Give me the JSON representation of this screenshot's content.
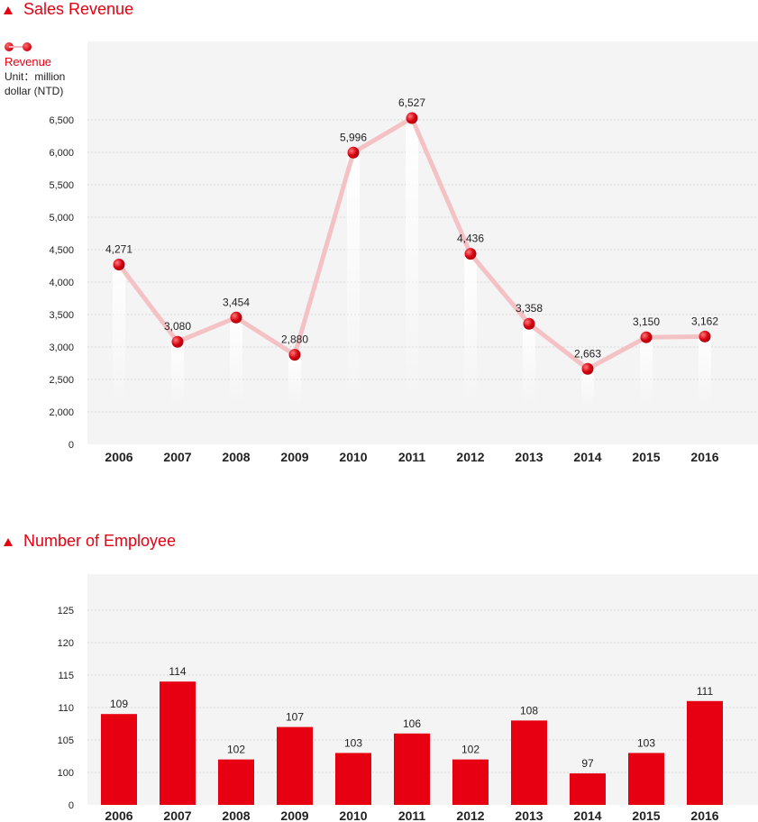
{
  "sections": {
    "revenue_title": "Sales Revenue",
    "employee_title": "Number of Employee"
  },
  "legend": {
    "series_label": "Revenue",
    "unit_line1": "Unit：million",
    "unit_line2": "dollar (NTD)"
  },
  "colors": {
    "accent": "#e60012",
    "line": "#f4c2c4",
    "plot_bg": "#f4f4f4",
    "bar": "#e60012"
  },
  "chart_data": [
    {
      "type": "line",
      "title": "Sales Revenue",
      "ylabel": "Unit：million dollar (NTD)",
      "categories": [
        "2006",
        "2007",
        "2008",
        "2009",
        "2010",
        "2011",
        "2012",
        "2013",
        "2014",
        "2015",
        "2016"
      ],
      "series": [
        {
          "name": "Revenue",
          "values": [
            4271,
            3080,
            3454,
            2880,
            5996,
            6527,
            4436,
            3358,
            2663,
            3150,
            3162
          ],
          "labels": [
            "4,271",
            "3,080",
            "3,454",
            "2,880",
            "5,996",
            "6,527",
            "4,436",
            "3,358",
            "2,663",
            "3,150",
            "3,162"
          ]
        }
      ],
      "yticks": [
        0,
        2000,
        2500,
        3000,
        3500,
        4000,
        4500,
        5000,
        5500,
        6000,
        6500
      ],
      "ytick_labels": [
        "0",
        "2,000",
        "2,500",
        "3,000",
        "3,500",
        "4,000",
        "4,500",
        "5,000",
        "5,500",
        "6,000",
        "6,500"
      ],
      "axis_break": "0 to 2,000 compressed",
      "grid": true,
      "legend_position": "top-left"
    },
    {
      "type": "bar",
      "title": "Number of Employee",
      "categories": [
        "2006",
        "2007",
        "2008",
        "2009",
        "2010",
        "2011",
        "2012",
        "2013",
        "2014",
        "2015",
        "2016"
      ],
      "series": [
        {
          "name": "",
          "values": [
            109,
            114,
            102,
            107,
            103,
            106,
            102,
            108,
            97,
            103,
            111
          ]
        }
      ],
      "yticks": [
        0,
        100,
        105,
        110,
        115,
        120,
        125
      ],
      "ytick_labels": [
        "0",
        "100",
        "105",
        "110",
        "115",
        "120",
        "125"
      ],
      "axis_break": "0 to 100 compressed",
      "grid": true
    }
  ]
}
